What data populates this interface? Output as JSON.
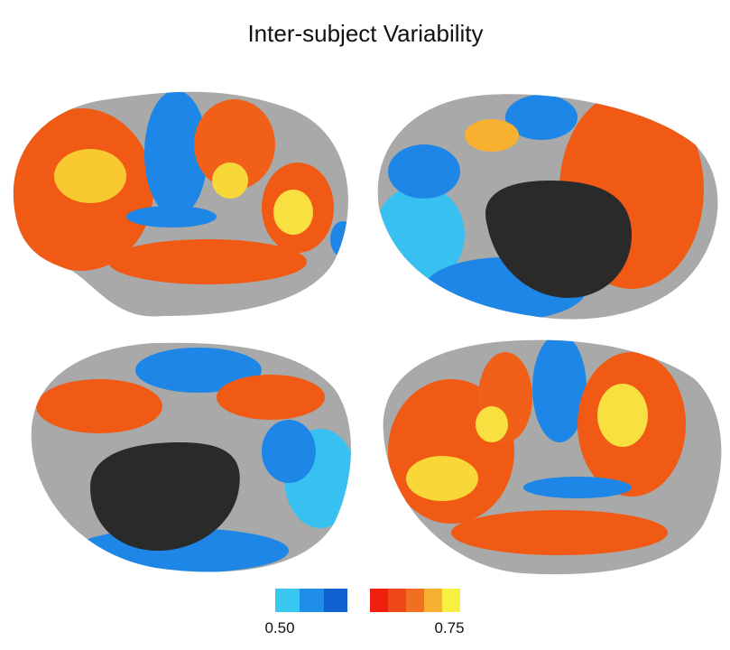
{
  "title": "Inter-subject Variability",
  "colorbar": {
    "labels": [
      "0.50",
      "0.75"
    ]
  }
}
